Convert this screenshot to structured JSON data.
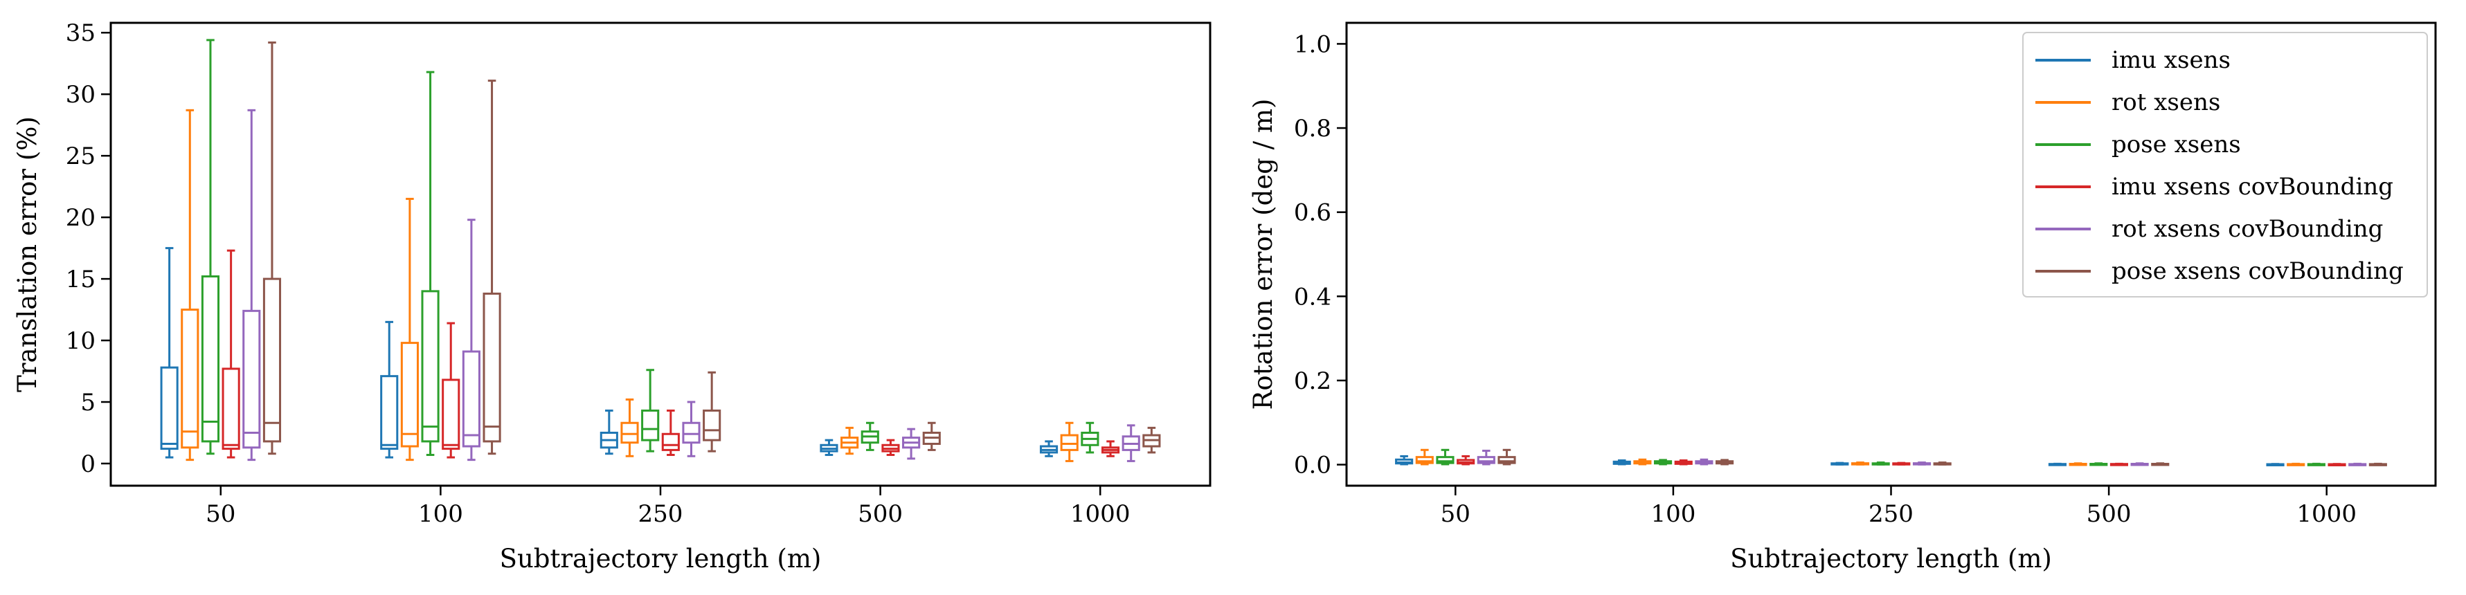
{
  "chart_data": [
    {
      "type": "box",
      "xlabel": "Subtrajectory length (m)",
      "ylabel": "Translation error (%)",
      "ylim": [
        -1.8,
        35.8
      ],
      "yticks": [
        0,
        5,
        10,
        15,
        20,
        25,
        30,
        35
      ],
      "categories": [
        "50",
        "100",
        "250",
        "500",
        "1000"
      ],
      "series": [
        {
          "name": "imu xsens",
          "color": "#1f77b4",
          "boxes": [
            {
              "whislo": 0.5,
              "q1": 1.2,
              "med": 1.6,
              "q3": 7.8,
              "whishi": 17.5
            },
            {
              "whislo": 0.5,
              "q1": 1.2,
              "med": 1.5,
              "q3": 7.1,
              "whishi": 11.5
            },
            {
              "whislo": 0.8,
              "q1": 1.3,
              "med": 1.9,
              "q3": 2.5,
              "whishi": 4.3
            },
            {
              "whislo": 0.7,
              "q1": 1.0,
              "med": 1.2,
              "q3": 1.5,
              "whishi": 1.9
            },
            {
              "whislo": 0.6,
              "q1": 0.9,
              "med": 1.1,
              "q3": 1.4,
              "whishi": 1.8
            }
          ]
        },
        {
          "name": "rot xsens",
          "color": "#ff7f0e",
          "boxes": [
            {
              "whislo": 0.3,
              "q1": 1.3,
              "med": 2.6,
              "q3": 12.5,
              "whishi": 28.7
            },
            {
              "whislo": 0.3,
              "q1": 1.4,
              "med": 2.4,
              "q3": 9.8,
              "whishi": 21.5
            },
            {
              "whislo": 0.6,
              "q1": 1.7,
              "med": 2.4,
              "q3": 3.3,
              "whishi": 5.2
            },
            {
              "whislo": 0.8,
              "q1": 1.3,
              "med": 1.7,
              "q3": 2.1,
              "whishi": 2.9
            },
            {
              "whislo": 0.2,
              "q1": 1.1,
              "med": 1.6,
              "q3": 2.3,
              "whishi": 3.3
            }
          ]
        },
        {
          "name": "pose xsens",
          "color": "#2ca02c",
          "boxes": [
            {
              "whislo": 0.8,
              "q1": 1.8,
              "med": 3.4,
              "q3": 15.2,
              "whishi": 34.4
            },
            {
              "whislo": 0.7,
              "q1": 1.8,
              "med": 3.0,
              "q3": 14.0,
              "whishi": 31.8
            },
            {
              "whislo": 1.0,
              "q1": 1.9,
              "med": 2.8,
              "q3": 4.3,
              "whishi": 7.6
            },
            {
              "whislo": 1.1,
              "q1": 1.7,
              "med": 2.2,
              "q3": 2.6,
              "whishi": 3.3
            },
            {
              "whislo": 0.9,
              "q1": 1.5,
              "med": 2.0,
              "q3": 2.5,
              "whishi": 3.3
            }
          ]
        },
        {
          "name": "imu xsens covBounding",
          "color": "#d62728",
          "boxes": [
            {
              "whislo": 0.5,
              "q1": 1.2,
              "med": 1.5,
              "q3": 7.7,
              "whishi": 17.3
            },
            {
              "whislo": 0.5,
              "q1": 1.2,
              "med": 1.5,
              "q3": 6.8,
              "whishi": 11.4
            },
            {
              "whislo": 0.7,
              "q1": 1.1,
              "med": 1.5,
              "q3": 2.4,
              "whishi": 4.3
            },
            {
              "whislo": 0.7,
              "q1": 1.0,
              "med": 1.2,
              "q3": 1.5,
              "whishi": 1.9
            },
            {
              "whislo": 0.6,
              "q1": 0.9,
              "med": 1.1,
              "q3": 1.3,
              "whishi": 1.8
            }
          ]
        },
        {
          "name": "rot xsens covBounding",
          "color": "#9467bd",
          "boxes": [
            {
              "whislo": 0.3,
              "q1": 1.3,
              "med": 2.5,
              "q3": 12.4,
              "whishi": 28.7
            },
            {
              "whislo": 0.3,
              "q1": 1.4,
              "med": 2.3,
              "q3": 9.1,
              "whishi": 19.8
            },
            {
              "whislo": 0.6,
              "q1": 1.7,
              "med": 2.4,
              "q3": 3.3,
              "whishi": 5.0
            },
            {
              "whislo": 0.4,
              "q1": 1.3,
              "med": 1.7,
              "q3": 2.1,
              "whishi": 2.8
            },
            {
              "whislo": 0.2,
              "q1": 1.1,
              "med": 1.6,
              "q3": 2.2,
              "whishi": 3.1
            }
          ]
        },
        {
          "name": "pose xsens covBounding",
          "color": "#8c564b",
          "boxes": [
            {
              "whislo": 0.8,
              "q1": 1.8,
              "med": 3.3,
              "q3": 15.0,
              "whishi": 34.2
            },
            {
              "whislo": 0.8,
              "q1": 1.8,
              "med": 3.0,
              "q3": 13.8,
              "whishi": 31.1
            },
            {
              "whislo": 1.0,
              "q1": 1.9,
              "med": 2.7,
              "q3": 4.3,
              "whishi": 7.4
            },
            {
              "whislo": 1.1,
              "q1": 1.6,
              "med": 2.1,
              "q3": 2.5,
              "whishi": 3.3
            },
            {
              "whislo": 0.9,
              "q1": 1.4,
              "med": 1.9,
              "q3": 2.3,
              "whishi": 2.9
            }
          ]
        }
      ]
    },
    {
      "type": "box",
      "xlabel": "Subtrajectory length (m)",
      "ylabel": "Rotation error (deg / m)",
      "ylim": [
        -0.05,
        1.05
      ],
      "yticks": [
        0.0,
        0.2,
        0.4,
        0.6,
        0.8,
        1.0
      ],
      "categories": [
        "50",
        "100",
        "250",
        "500",
        "1000"
      ],
      "legend": "top-right",
      "series": [
        {
          "name": "imu xsens",
          "color": "#1f77b4",
          "boxes": [
            {
              "whislo": 0.001,
              "q1": 0.003,
              "med": 0.005,
              "q3": 0.012,
              "whishi": 0.02
            },
            {
              "whislo": 0.001,
              "q1": 0.002,
              "med": 0.004,
              "q3": 0.007,
              "whishi": 0.01
            },
            {
              "whislo": 0.0005,
              "q1": 0.001,
              "med": 0.002,
              "q3": 0.003,
              "whishi": 0.004
            },
            {
              "whislo": 0.0003,
              "q1": 0.0006,
              "med": 0.001,
              "q3": 0.0015,
              "whishi": 0.002
            },
            {
              "whislo": 0.0002,
              "q1": 0.0004,
              "med": 0.0007,
              "q3": 0.001,
              "whishi": 0.0015
            }
          ]
        },
        {
          "name": "rot xsens",
          "color": "#ff7f0e",
          "boxes": [
            {
              "whislo": 0.001,
              "q1": 0.004,
              "med": 0.008,
              "q3": 0.018,
              "whishi": 0.035
            },
            {
              "whislo": 0.001,
              "q1": 0.003,
              "med": 0.005,
              "q3": 0.008,
              "whishi": 0.012
            },
            {
              "whislo": 0.0005,
              "q1": 0.0012,
              "med": 0.002,
              "q3": 0.0032,
              "whishi": 0.005
            },
            {
              "whislo": 0.0003,
              "q1": 0.0007,
              "med": 0.0012,
              "q3": 0.0018,
              "whishi": 0.003
            },
            {
              "whislo": 0.0002,
              "q1": 0.0005,
              "med": 0.0008,
              "q3": 0.0012,
              "whishi": 0.002
            }
          ]
        },
        {
          "name": "pose xsens",
          "color": "#2ca02c",
          "boxes": [
            {
              "whislo": 0.001,
              "q1": 0.004,
              "med": 0.008,
              "q3": 0.018,
              "whishi": 0.035
            },
            {
              "whislo": 0.001,
              "q1": 0.003,
              "med": 0.005,
              "q3": 0.008,
              "whishi": 0.011
            },
            {
              "whislo": 0.0005,
              "q1": 0.0012,
              "med": 0.002,
              "q3": 0.003,
              "whishi": 0.005
            },
            {
              "whislo": 0.0003,
              "q1": 0.0007,
              "med": 0.0012,
              "q3": 0.0018,
              "whishi": 0.003
            },
            {
              "whislo": 0.0002,
              "q1": 0.0005,
              "med": 0.0008,
              "q3": 0.0012,
              "whishi": 0.002
            }
          ]
        },
        {
          "name": "imu xsens covBounding",
          "color": "#d62728",
          "boxes": [
            {
              "whislo": 0.001,
              "q1": 0.003,
              "med": 0.005,
              "q3": 0.011,
              "whishi": 0.02
            },
            {
              "whislo": 0.001,
              "q1": 0.002,
              "med": 0.004,
              "q3": 0.007,
              "whishi": 0.01
            },
            {
              "whislo": 0.0005,
              "q1": 0.001,
              "med": 0.002,
              "q3": 0.003,
              "whishi": 0.004
            },
            {
              "whislo": 0.0003,
              "q1": 0.0006,
              "med": 0.001,
              "q3": 0.0015,
              "whishi": 0.002
            },
            {
              "whislo": 0.0002,
              "q1": 0.0004,
              "med": 0.0007,
              "q3": 0.001,
              "whishi": 0.0015
            }
          ]
        },
        {
          "name": "rot xsens covBounding",
          "color": "#9467bd",
          "boxes": [
            {
              "whislo": 0.001,
              "q1": 0.004,
              "med": 0.008,
              "q3": 0.018,
              "whishi": 0.033
            },
            {
              "whislo": 0.001,
              "q1": 0.003,
              "med": 0.005,
              "q3": 0.008,
              "whishi": 0.012
            },
            {
              "whislo": 0.0005,
              "q1": 0.0012,
              "med": 0.002,
              "q3": 0.0032,
              "whishi": 0.005
            },
            {
              "whislo": 0.0003,
              "q1": 0.0007,
              "med": 0.0012,
              "q3": 0.0018,
              "whishi": 0.003
            },
            {
              "whislo": 0.0002,
              "q1": 0.0005,
              "med": 0.0008,
              "q3": 0.0012,
              "whishi": 0.002
            }
          ]
        },
        {
          "name": "pose xsens covBounding",
          "color": "#8c564b",
          "boxes": [
            {
              "whislo": 0.001,
              "q1": 0.004,
              "med": 0.008,
              "q3": 0.018,
              "whishi": 0.035
            },
            {
              "whislo": 0.001,
              "q1": 0.003,
              "med": 0.005,
              "q3": 0.008,
              "whishi": 0.011
            },
            {
              "whislo": 0.0005,
              "q1": 0.0012,
              "med": 0.002,
              "q3": 0.003,
              "whishi": 0.005
            },
            {
              "whislo": 0.0003,
              "q1": 0.0007,
              "med": 0.0012,
              "q3": 0.0018,
              "whishi": 0.003
            },
            {
              "whislo": 0.0002,
              "q1": 0.0005,
              "med": 0.0008,
              "q3": 0.0012,
              "whishi": 0.002
            }
          ]
        }
      ]
    }
  ]
}
